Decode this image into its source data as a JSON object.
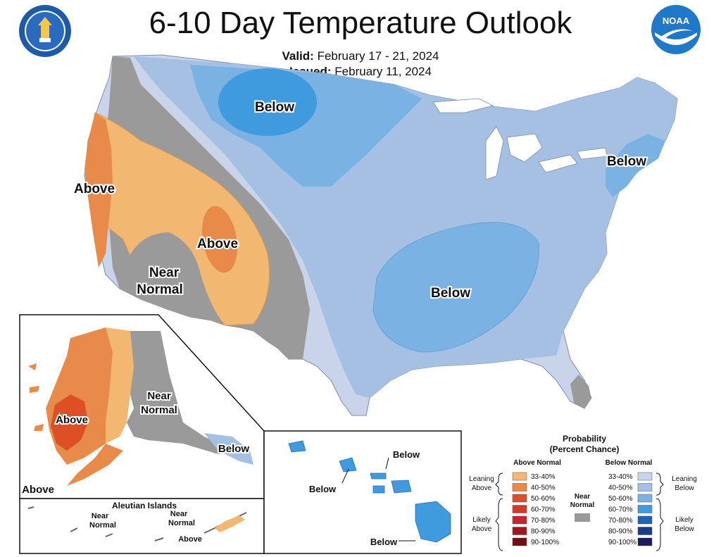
{
  "title": "6-10 Day Temperature Outlook",
  "valid": {
    "label": "Valid:",
    "value": "February 17 - 21, 2024"
  },
  "issued": {
    "label": "Issued:",
    "value": "February 11, 2024"
  },
  "logos": {
    "left": "department-of-commerce-seal",
    "right": "noaa-logo",
    "noaa_text": "NOAA"
  },
  "conus_labels": {
    "above_west": "Above",
    "above_utah": "Above",
    "near_normal": "Near",
    "near_normal_2": "Normal",
    "below_north": "Below",
    "below_northeast": "Below",
    "below_south": "Below"
  },
  "alaska_labels": {
    "above_west": "Above",
    "above_southwest": "Above",
    "near_normal": "Near",
    "near_normal_2": "Normal",
    "below_southeast": "Below",
    "aleutian_title": "Aleutian Islands",
    "aleutian_near_1a": "Near",
    "aleutian_near_1b": "Normal",
    "aleutian_near_2a": "Near",
    "aleutian_near_2b": "Normal",
    "aleutian_above": "Above"
  },
  "hawaii_labels": {
    "below_1": "Below",
    "below_2": "Below",
    "below_3": "Below"
  },
  "legend": {
    "title_1": "Probability",
    "title_2": "(Percent Chance)",
    "above_header": "Above Normal",
    "below_header": "Below Normal",
    "near_1": "Near",
    "near_2": "Normal",
    "leaning_above_1": "Leaning",
    "leaning_above_2": "Above",
    "likely_above_1": "Likely",
    "likely_above_2": "Above",
    "leaning_below_1": "Leaning",
    "leaning_below_2": "Below",
    "likely_below_1": "Likely",
    "likely_below_2": "Below",
    "above_bins": [
      "33-40%",
      "40-50%",
      "50-60%",
      "60-70%",
      "70-80%",
      "80-90%",
      "90-100%"
    ],
    "below_bins": [
      "33-40%",
      "40-50%",
      "50-60%",
      "60-70%",
      "70-80%",
      "80-90%",
      "90-100%"
    ],
    "above_colors": [
      "#f2b872",
      "#e88b4a",
      "#dd4f24",
      "#d33a2a",
      "#c7242e",
      "#a3161d",
      "#6e1010"
    ],
    "below_colors": [
      "#c9d4ea",
      "#a5c0e2",
      "#7ab3e3",
      "#3f9ade",
      "#1d63b8",
      "#1a3a8a",
      "#1a1a5e"
    ],
    "near_color": "#999999"
  }
}
